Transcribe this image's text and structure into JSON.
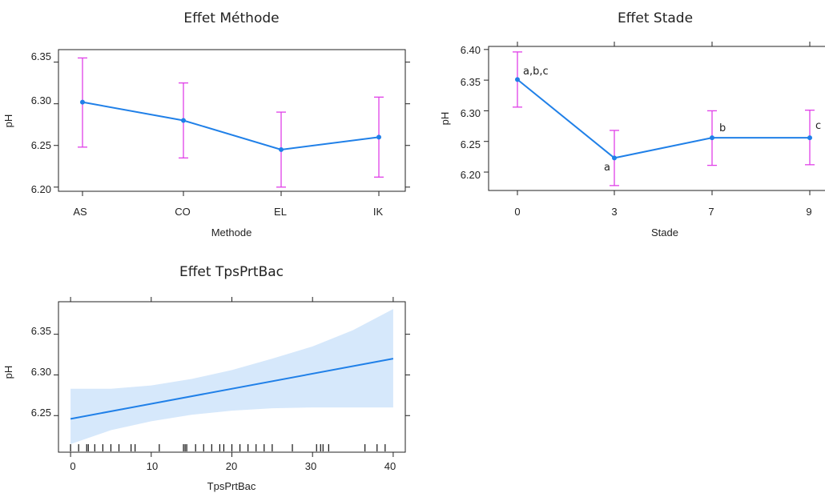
{
  "colors": {
    "line": "#2080e8",
    "errorbar": "#e040e8",
    "band": "#d6e8fb",
    "axis": "#222222"
  },
  "chart_data": [
    {
      "type": "line",
      "title": "Effet Méthode",
      "xlabel": "Methode",
      "ylabel": "pH",
      "categories": [
        "AS",
        "CO",
        "EL",
        "IK"
      ],
      "values": [
        6.302,
        6.28,
        6.245,
        6.26
      ],
      "lower": [
        6.248,
        6.235,
        6.2,
        6.212
      ],
      "upper": [
        6.355,
        6.325,
        6.29,
        6.308
      ],
      "yticks": [
        "6.20",
        "6.25",
        "6.30",
        "6.35"
      ],
      "ylim": [
        6.195,
        6.365
      ],
      "grid": false
    },
    {
      "type": "line",
      "title": "Effet Stade",
      "xlabel": "Stade",
      "ylabel": "pH",
      "categories": [
        "0",
        "3",
        "7",
        "9"
      ],
      "values": [
        6.351,
        6.223,
        6.256,
        6.256
      ],
      "lower": [
        6.306,
        6.178,
        6.211,
        6.212
      ],
      "upper": [
        6.396,
        6.268,
        6.3,
        6.301
      ],
      "annotations": [
        "a,b,c",
        "a",
        "b",
        "c"
      ],
      "yticks": [
        "6.20",
        "6.25",
        "6.30",
        "6.35",
        "6.40"
      ],
      "ylim": [
        6.17,
        6.405
      ],
      "grid": false
    },
    {
      "type": "line",
      "title": "Effet TpsPrtBac",
      "xlabel": "TpsPrtBac",
      "ylabel": "pH",
      "x": [
        0,
        40
      ],
      "values": [
        6.246,
        6.32
      ],
      "band_lower": [
        [
          0,
          6.215
        ],
        [
          5,
          6.232
        ],
        [
          10,
          6.243
        ],
        [
          15,
          6.251
        ],
        [
          20,
          6.256
        ],
        [
          25,
          6.259
        ],
        [
          30,
          6.26
        ],
        [
          35,
          6.26
        ],
        [
          40,
          6.26
        ]
      ],
      "band_upper": [
        [
          0,
          6.283
        ],
        [
          5,
          6.283
        ],
        [
          10,
          6.287
        ],
        [
          15,
          6.295
        ],
        [
          20,
          6.306
        ],
        [
          25,
          6.32
        ],
        [
          30,
          6.335
        ],
        [
          35,
          6.355
        ],
        [
          40,
          6.381
        ]
      ],
      "xticks": [
        "0",
        "10",
        "20",
        "30",
        "40"
      ],
      "yticks": [
        "6.25",
        "6.30",
        "6.35"
      ],
      "xlim": [
        -1.5,
        41.5
      ],
      "ylim": [
        6.205,
        6.39
      ],
      "rug": [
        0,
        1,
        2,
        2.2,
        3,
        4,
        5,
        6,
        7.5,
        8,
        11,
        14,
        14.2,
        14.4,
        15.5,
        16.5,
        17.5,
        18.5,
        19,
        20,
        21,
        22,
        23,
        24,
        25,
        27.5,
        30.5,
        31,
        31.3,
        32,
        36.5,
        38,
        39
      ],
      "grid": false
    }
  ]
}
